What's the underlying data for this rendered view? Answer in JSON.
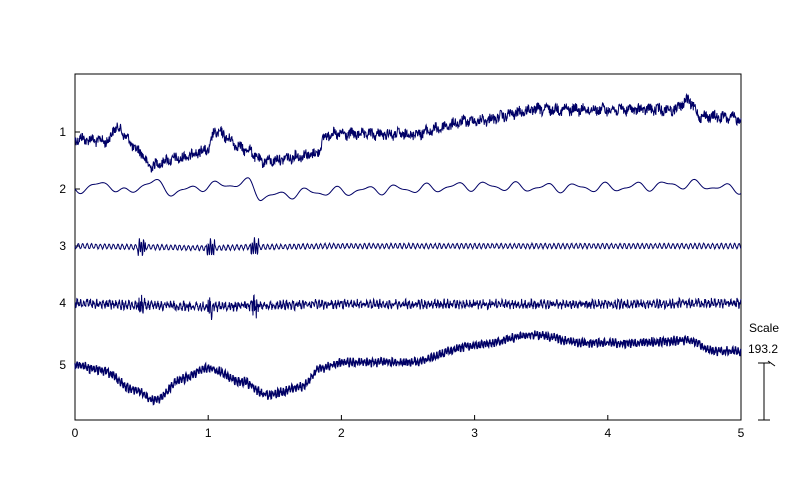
{
  "chart_data": {
    "type": "line",
    "title": "",
    "xlabel": "",
    "ylabel": "",
    "xlim": [
      0,
      5
    ],
    "x_ticks": [
      "0",
      "1",
      "2",
      "3",
      "4",
      "5"
    ],
    "y_ticks": [
      "1",
      "2",
      "3",
      "4",
      "5"
    ],
    "grid": false,
    "line_color": "#000066",
    "scale": {
      "label": "Scale",
      "value": "193.2"
    },
    "series": [
      {
        "id": "1",
        "x": [
          0,
          0.25,
          0.3,
          0.5,
          0.55,
          0.75,
          1.0,
          1.05,
          1.3,
          1.4,
          1.8,
          1.9,
          2.5,
          3.0,
          3.5,
          4.0,
          4.5,
          4.6,
          4.7,
          5.0
        ],
        "y": [
          0.15,
          0.2,
          -0.1,
          0.45,
          0.75,
          0.6,
          0.4,
          0.0,
          0.4,
          0.65,
          0.5,
          0.05,
          0.05,
          -0.25,
          -0.5,
          -0.5,
          -0.5,
          -0.7,
          -0.35,
          -0.3
        ]
      },
      {
        "id": "2",
        "x": [
          0,
          0.25,
          0.4,
          0.55,
          0.75,
          1.0,
          1.3,
          1.4,
          1.8,
          2.5,
          3.0,
          3.5,
          4.0,
          4.6,
          5.0
        ],
        "y": [
          0.0,
          -0.15,
          0.15,
          -0.25,
          0.1,
          -0.1,
          -0.2,
          0.25,
          0.1,
          0.0,
          -0.1,
          -0.05,
          -0.05,
          -0.15,
          0.0
        ]
      },
      {
        "id": "3",
        "x": [
          0,
          0.5,
          1.0,
          1.35,
          2.0,
          3.0,
          4.0,
          5.0
        ],
        "y": [
          0.0,
          0.05,
          0.1,
          0.05,
          0.0,
          0.0,
          0.0,
          0.0
        ]
      },
      {
        "id": "4",
        "x": [
          0,
          0.5,
          1.0,
          1.35,
          2.0,
          3.0,
          4.0,
          5.0
        ],
        "y": [
          0.0,
          0.1,
          0.15,
          0.1,
          0.05,
          0.05,
          0.05,
          0.0
        ]
      },
      {
        "id": "5",
        "x": [
          0,
          0.2,
          0.45,
          0.6,
          0.8,
          1.0,
          1.25,
          1.45,
          1.7,
          1.85,
          2.0,
          2.5,
          3.0,
          3.45,
          3.8,
          4.2,
          4.6,
          4.8,
          5.0
        ],
        "y": [
          0.0,
          0.1,
          0.45,
          0.65,
          0.25,
          0.05,
          0.3,
          0.55,
          0.4,
          0.05,
          -0.05,
          -0.05,
          -0.35,
          -0.55,
          -0.4,
          -0.4,
          -0.45,
          -0.25,
          -0.25
        ]
      }
    ]
  }
}
